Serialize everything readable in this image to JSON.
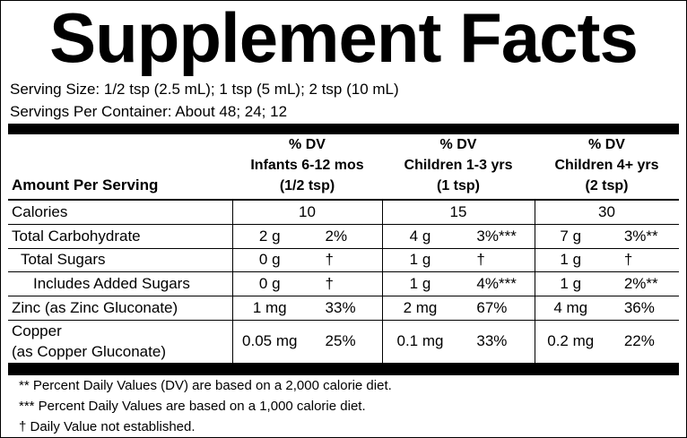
{
  "header": {
    "title": "Supplement Facts",
    "serving_size": "Serving Size: 1/2 tsp (2.5 mL); 1 tsp (5 mL); 2 tsp (10 mL)",
    "servings_per_container": "Servings Per Container: About 48; 24; 12"
  },
  "table": {
    "amount_header": "Amount Per Serving",
    "columns": [
      {
        "dv": "% DV",
        "group": "Infants 6-12 mos",
        "serving": "(1/2 tsp)"
      },
      {
        "dv": "% DV",
        "group": "Children 1-3 yrs",
        "serving": "(1 tsp)"
      },
      {
        "dv": "% DV",
        "group": "Children 4+ yrs",
        "serving": "(2 tsp)"
      }
    ],
    "rows": [
      {
        "label": "Calories",
        "cells": [
          "10",
          "15",
          "30"
        ]
      },
      {
        "label": "Total Carbohydrate",
        "cells": [
          [
            "2 g",
            "2%"
          ],
          [
            "4 g",
            "3%***"
          ],
          [
            "7 g",
            "3%**"
          ]
        ]
      },
      {
        "label": "Total Sugars",
        "cells": [
          [
            "0 g",
            "†"
          ],
          [
            "1 g",
            "†"
          ],
          [
            "1 g",
            "†"
          ]
        ]
      },
      {
        "label": "Includes Added Sugars",
        "cells": [
          [
            "0 g",
            "†"
          ],
          [
            "1 g",
            "4%***"
          ],
          [
            "1 g",
            "2%**"
          ]
        ]
      },
      {
        "label": "Zinc (as Zinc Gluconate)",
        "cells": [
          [
            "1 mg",
            "33%"
          ],
          [
            "2 mg",
            "67%"
          ],
          [
            "4 mg",
            "36%"
          ]
        ]
      },
      {
        "label": "Copper",
        "sublabel": "(as Copper Gluconate)",
        "cells": [
          [
            "0.05 mg",
            "25%"
          ],
          [
            "0.1 mg",
            "33%"
          ],
          [
            "0.2 mg",
            "22%"
          ]
        ]
      }
    ]
  },
  "footnotes": [
    "** Percent Daily Values (DV) are based on a 2,000 calorie diet.",
    "*** Percent Daily Values are based on a 1,000 calorie diet.",
    "† Daily Value not established."
  ]
}
